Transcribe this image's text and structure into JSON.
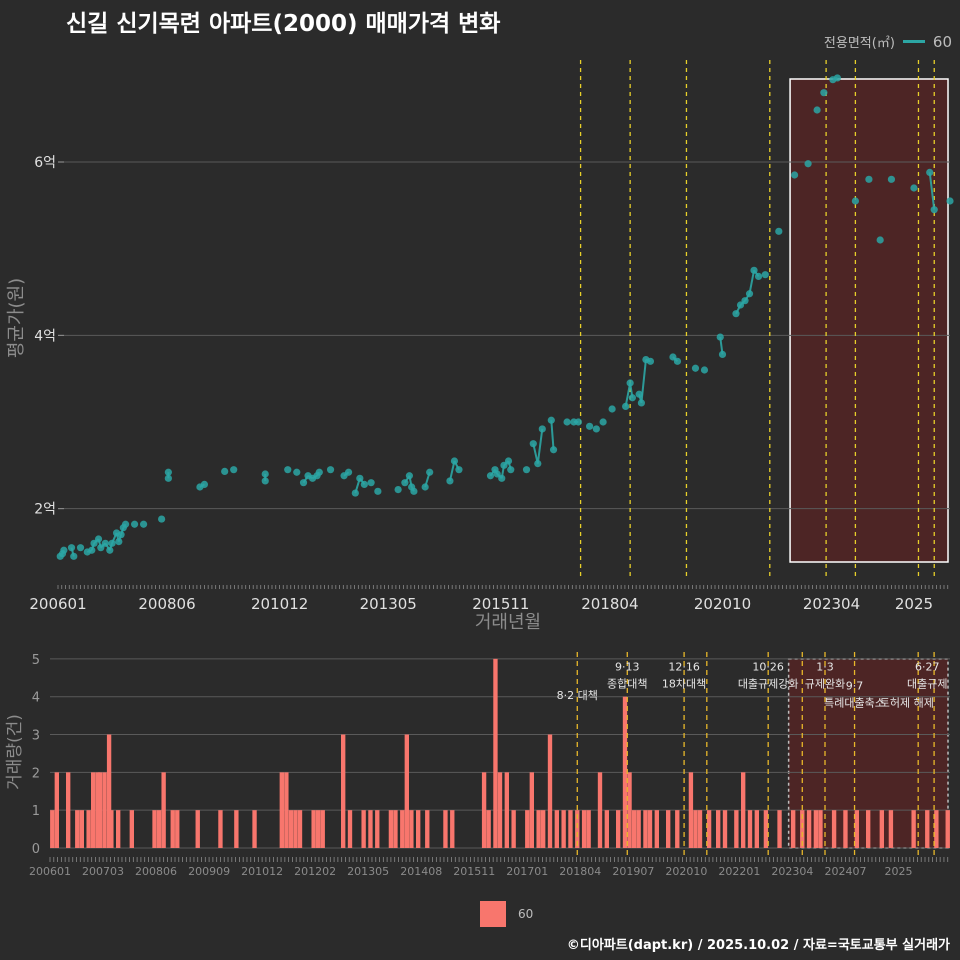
{
  "title": "신길 신기목련 아파트(2000) 매매가격 변화",
  "legend": {
    "title": "전용면적(㎡)",
    "area_label": "60"
  },
  "credit": "©디아파트(dapt.kr) / 2025.10.02 / 자료=국토교통부 실거래가",
  "colors": {
    "series": "#2ca6a4",
    "bars": "#f8766d",
    "policy_line": "#e8d02a",
    "highlight_fill": "#5a2424",
    "background": "#2b2b2b"
  },
  "chart_data": [
    {
      "type": "line",
      "title": "신길 신기목련 아파트(2000) 매매가격 변화",
      "xlabel": "거래년월",
      "ylabel": "평균가(원)",
      "x_tick_labels": [
        "200601",
        "200806",
        "201012",
        "201305",
        "201511",
        "201804",
        "202010",
        "202304",
        "2025"
      ],
      "y_tick_labels": [
        "2억",
        "4억",
        "6억"
      ],
      "y_ticks_value": [
        2,
        4,
        6
      ],
      "y_unit": "억원",
      "ylim": [
        1.2,
        7.2
      ],
      "xlim": [
        2006.0,
        2025.8
      ],
      "grid": true,
      "series": [
        {
          "name": "60",
          "points": [
            [
              2006.05,
              1.45
            ],
            [
              2006.1,
              1.48
            ],
            [
              2006.13,
              1.52
            ],
            [
              2006.3,
              1.55
            ],
            [
              2006.35,
              1.45
            ],
            [
              2006.5,
              1.55
            ],
            [
              2006.65,
              1.5
            ],
            [
              2006.75,
              1.52
            ],
            [
              2006.8,
              1.6
            ],
            [
              2006.9,
              1.65
            ],
            [
              2006.95,
              1.55
            ],
            [
              2007.05,
              1.6
            ],
            [
              2007.15,
              1.52
            ],
            [
              2007.2,
              1.6
            ],
            [
              2007.3,
              1.72
            ],
            [
              2007.35,
              1.62
            ],
            [
              2007.4,
              1.7
            ],
            [
              2007.45,
              1.78
            ],
            [
              2007.5,
              1.82
            ],
            [
              2007.7,
              1.82
            ],
            [
              2007.9,
              1.82
            ],
            [
              2008.3,
              1.88
            ],
            [
              2008.45,
              2.35
            ],
            [
              2008.45,
              2.42
            ],
            [
              2009.15,
              2.25
            ],
            [
              2009.25,
              2.28
            ],
            [
              2009.7,
              2.43
            ],
            [
              2009.9,
              2.45
            ],
            [
              2010.6,
              2.4
            ],
            [
              2010.6,
              2.32
            ],
            [
              2011.1,
              2.45
            ],
            [
              2011.3,
              2.42
            ],
            [
              2011.45,
              2.3
            ],
            [
              2011.55,
              2.38
            ],
            [
              2011.65,
              2.35
            ],
            [
              2011.75,
              2.38
            ],
            [
              2011.8,
              2.42
            ],
            [
              2012.05,
              2.45
            ],
            [
              2012.35,
              2.38
            ],
            [
              2012.45,
              2.42
            ],
            [
              2012.6,
              2.18
            ],
            [
              2012.7,
              2.35
            ],
            [
              2012.8,
              2.28
            ],
            [
              2012.95,
              2.3
            ],
            [
              2013.1,
              2.2
            ],
            [
              2013.55,
              2.22
            ],
            [
              2013.7,
              2.3
            ],
            [
              2013.8,
              2.38
            ],
            [
              2013.85,
              2.25
            ],
            [
              2013.9,
              2.2
            ],
            [
              2014.15,
              2.25
            ],
            [
              2014.25,
              2.42
            ],
            [
              2014.7,
              2.32
            ],
            [
              2014.8,
              2.55
            ],
            [
              2014.9,
              2.45
            ],
            [
              2015.6,
              2.38
            ],
            [
              2015.7,
              2.45
            ],
            [
              2015.75,
              2.4
            ],
            [
              2015.85,
              2.35
            ],
            [
              2015.9,
              2.5
            ],
            [
              2016.0,
              2.55
            ],
            [
              2016.05,
              2.45
            ],
            [
              2016.4,
              2.45
            ],
            [
              2016.55,
              2.75
            ],
            [
              2016.65,
              2.52
            ],
            [
              2016.75,
              2.92
            ],
            [
              2016.95,
              3.02
            ],
            [
              2017.0,
              2.68
            ],
            [
              2017.3,
              3.0
            ],
            [
              2017.45,
              3.0
            ],
            [
              2017.55,
              3.0
            ],
            [
              2017.8,
              2.95
            ],
            [
              2017.95,
              2.92
            ],
            [
              2018.1,
              3.0
            ],
            [
              2018.3,
              3.15
            ],
            [
              2018.6,
              3.18
            ],
            [
              2018.7,
              3.45
            ],
            [
              2018.75,
              3.28
            ],
            [
              2018.9,
              3.32
            ],
            [
              2018.95,
              3.22
            ],
            [
              2019.05,
              3.72
            ],
            [
              2019.15,
              3.7
            ],
            [
              2019.65,
              3.75
            ],
            [
              2019.75,
              3.7
            ],
            [
              2020.15,
              3.62
            ],
            [
              2020.35,
              3.6
            ],
            [
              2020.7,
              3.98
            ],
            [
              2020.75,
              3.78
            ],
            [
              2021.05,
              4.25
            ],
            [
              2021.15,
              4.35
            ],
            [
              2021.25,
              4.4
            ],
            [
              2021.35,
              4.48
            ],
            [
              2021.45,
              4.75
            ],
            [
              2021.55,
              4.68
            ],
            [
              2021.7,
              4.7
            ],
            [
              2022.0,
              5.2
            ],
            [
              2022.35,
              5.85
            ],
            [
              2022.65,
              5.98
            ],
            [
              2022.85,
              6.6
            ],
            [
              2023.0,
              6.8
            ],
            [
              2023.2,
              6.95
            ],
            [
              2023.3,
              6.97
            ],
            [
              2023.7,
              5.55
            ],
            [
              2024.0,
              5.8
            ],
            [
              2024.25,
              5.1
            ],
            [
              2024.5,
              5.8
            ],
            [
              2025.0,
              5.7
            ],
            [
              2025.35,
              5.88
            ],
            [
              2025.45,
              5.45
            ],
            [
              2025.8,
              5.55
            ]
          ]
        }
      ],
      "highlight_range": [
        2022.25,
        2025.8
      ],
      "policy_lines_x": [
        2017.6,
        2018.7,
        2019.95,
        2021.8,
        2023.05,
        2023.7,
        2025.1,
        2025.45
      ]
    },
    {
      "type": "bar",
      "xlabel": "",
      "ylabel": "거래량(건)",
      "x_tick_labels": [
        "200601",
        "200703",
        "200806",
        "200909",
        "201012",
        "201202",
        "201305",
        "201408",
        "201511",
        "201701",
        "201804",
        "201907",
        "202010",
        "202201",
        "202304",
        "202407",
        "2025"
      ],
      "y_tick_labels": [
        "0",
        "1",
        "2",
        "3",
        "4",
        "5"
      ],
      "ylim": [
        0,
        5
      ],
      "xlim": [
        2006.0,
        2025.8
      ],
      "grid": true,
      "series_name": "60",
      "bars": [
        [
          2006.05,
          1
        ],
        [
          2006.15,
          2
        ],
        [
          2006.4,
          2
        ],
        [
          2006.6,
          1
        ],
        [
          2006.7,
          1
        ],
        [
          2006.85,
          1
        ],
        [
          2006.95,
          2
        ],
        [
          2007.05,
          2
        ],
        [
          2007.1,
          2
        ],
        [
          2007.2,
          2
        ],
        [
          2007.3,
          3
        ],
        [
          2007.35,
          1
        ],
        [
          2007.5,
          1
        ],
        [
          2007.8,
          1
        ],
        [
          2008.3,
          1
        ],
        [
          2008.4,
          1
        ],
        [
          2008.5,
          2
        ],
        [
          2008.7,
          1
        ],
        [
          2008.8,
          1
        ],
        [
          2009.25,
          1
        ],
        [
          2009.75,
          1
        ],
        [
          2010.1,
          1
        ],
        [
          2010.5,
          1
        ],
        [
          2011.1,
          2
        ],
        [
          2011.2,
          2
        ],
        [
          2011.3,
          1
        ],
        [
          2011.4,
          1
        ],
        [
          2011.5,
          1
        ],
        [
          2011.8,
          1
        ],
        [
          2011.9,
          1
        ],
        [
          2012.0,
          1
        ],
        [
          2012.45,
          3
        ],
        [
          2012.6,
          1
        ],
        [
          2012.9,
          1
        ],
        [
          2013.05,
          1
        ],
        [
          2013.2,
          1
        ],
        [
          2013.5,
          1
        ],
        [
          2013.6,
          1
        ],
        [
          2013.75,
          1
        ],
        [
          2013.85,
          3
        ],
        [
          2013.95,
          1
        ],
        [
          2014.1,
          1
        ],
        [
          2014.3,
          1
        ],
        [
          2014.7,
          1
        ],
        [
          2014.85,
          1
        ],
        [
          2015.55,
          2
        ],
        [
          2015.65,
          1
        ],
        [
          2015.8,
          5
        ],
        [
          2015.9,
          2
        ],
        [
          2016.05,
          2
        ],
        [
          2016.2,
          1
        ],
        [
          2016.5,
          1
        ],
        [
          2016.6,
          2
        ],
        [
          2016.75,
          1
        ],
        [
          2016.85,
          1
        ],
        [
          2017.0,
          3
        ],
        [
          2017.15,
          1
        ],
        [
          2017.3,
          1
        ],
        [
          2017.45,
          1
        ],
        [
          2017.6,
          1
        ],
        [
          2017.75,
          1
        ],
        [
          2017.85,
          1
        ],
        [
          2018.1,
          2
        ],
        [
          2018.25,
          1
        ],
        [
          2018.5,
          1
        ],
        [
          2018.65,
          4
        ],
        [
          2018.75,
          2
        ],
        [
          2018.85,
          1
        ],
        [
          2018.95,
          1
        ],
        [
          2019.1,
          1
        ],
        [
          2019.2,
          1
        ],
        [
          2019.35,
          1
        ],
        [
          2019.6,
          1
        ],
        [
          2019.8,
          1
        ],
        [
          2020.1,
          2
        ],
        [
          2020.2,
          1
        ],
        [
          2020.3,
          1
        ],
        [
          2020.5,
          1
        ],
        [
          2020.7,
          1
        ],
        [
          2020.85,
          1
        ],
        [
          2021.1,
          1
        ],
        [
          2021.25,
          2
        ],
        [
          2021.4,
          1
        ],
        [
          2021.55,
          1
        ],
        [
          2021.75,
          1
        ],
        [
          2022.05,
          1
        ],
        [
          2022.35,
          1
        ],
        [
          2022.55,
          1
        ],
        [
          2022.7,
          1
        ],
        [
          2022.85,
          1
        ],
        [
          2022.95,
          1
        ],
        [
          2023.25,
          1
        ],
        [
          2023.5,
          1
        ],
        [
          2023.75,
          1
        ],
        [
          2024.0,
          1
        ],
        [
          2024.3,
          1
        ],
        [
          2024.5,
          1
        ],
        [
          2025.0,
          1
        ],
        [
          2025.3,
          1
        ],
        [
          2025.5,
          1
        ],
        [
          2025.75,
          1
        ]
      ],
      "highlight_range": [
        2022.25,
        2025.8
      ],
      "policy_lines_x": [
        2017.6,
        2018.7,
        2019.95,
        2020.45,
        2021.8,
        2022.55,
        2023.05,
        2023.7,
        2025.1,
        2025.45
      ],
      "annotations": [
        {
          "x": 2017.6,
          "y": 4.5,
          "line1": "",
          "line2": "8·2 대책"
        },
        {
          "x": 2018.7,
          "y": 4.8,
          "line1": "9·13",
          "line2": "종합대책"
        },
        {
          "x": 2019.95,
          "y": 4.8,
          "line1": "12·16",
          "line2": "18차대책"
        },
        {
          "x": 2021.8,
          "y": 4.8,
          "line1": "10·26",
          "line2": "대출규제강화"
        },
        {
          "x": 2023.05,
          "y": 4.8,
          "line1": "1·3",
          "line2": "규제완화"
        },
        {
          "x": 2023.7,
          "y": 4.3,
          "line1": "9·7",
          "line2": "특례대출축소"
        },
        {
          "x": 2025.3,
          "y": 4.8,
          "line1": "6·27",
          "line2": "대출규제"
        },
        {
          "x": 2024.85,
          "y": 4.3,
          "line1": "",
          "line2": "토허제 해제"
        }
      ]
    }
  ]
}
